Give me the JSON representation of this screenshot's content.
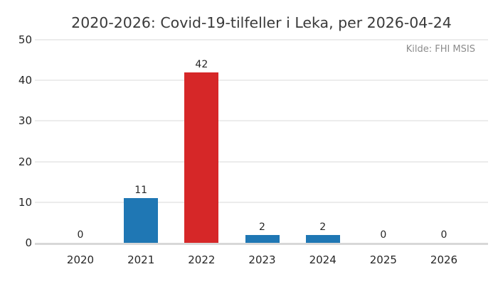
{
  "chart_data": {
    "type": "bar",
    "title": "2020-2026: Covid-19-tilfeller i Leka, per 2026-04-24",
    "source_note": "Kilde: FHI MSIS",
    "categories": [
      "2020",
      "2021",
      "2022",
      "2023",
      "2024",
      "2025",
      "2026"
    ],
    "values": [
      0,
      11,
      42,
      2,
      2,
      0,
      0
    ],
    "bar_colors": [
      "#1f77b4",
      "#1f77b4",
      "#d62728",
      "#1f77b4",
      "#1f77b4",
      "#1f77b4",
      "#1f77b4"
    ],
    "yticks": [
      0,
      10,
      20,
      30,
      40,
      50
    ],
    "ylim": [
      0,
      50
    ],
    "xlabel": "",
    "ylabel": "",
    "grid": "horizontal",
    "legend": "none",
    "value_labels_shown": true,
    "colors": {
      "default_bar": "#1f77b4",
      "highlight_bar": "#d62728",
      "gridline": "#ececec",
      "baseline": "#d8d8d8",
      "title_text": "#3a3a3a",
      "tick_text": "#262626",
      "source_text": "#8c8c8c",
      "background": "#ffffff"
    }
  }
}
